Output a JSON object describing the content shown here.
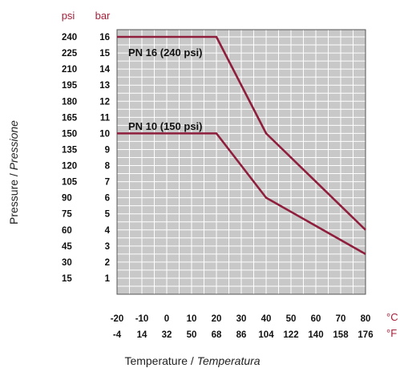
{
  "chart_data": {
    "type": "line",
    "ylabel_main": "Pressure / ",
    "ylabel_italic": "Pressione",
    "xlabel_main": "Temperature / ",
    "xlabel_italic": "Temperatura",
    "y_units": {
      "psi": "psi",
      "bar": "bar"
    },
    "x_units": {
      "c": "°C",
      "f": "°F"
    },
    "xlim": [
      -20,
      80
    ],
    "ylim_bar": [
      0,
      16
    ],
    "grid": true,
    "x_ticks_c": [
      "-20",
      "-10",
      "0",
      "10",
      "20",
      "30",
      "40",
      "50",
      "60",
      "70",
      "80"
    ],
    "x_ticks_f": [
      "-4",
      "14",
      "32",
      "50",
      "68",
      "86",
      "104",
      "122",
      "140",
      "158",
      "176"
    ],
    "y_ticks_bar": [
      "1",
      "2",
      "3",
      "4",
      "5",
      "6",
      "7",
      "8",
      "9",
      "10",
      "11",
      "12",
      "13",
      "14",
      "15",
      "16"
    ],
    "y_ticks_psi": [
      "15",
      "30",
      "45",
      "60",
      "75",
      "90",
      "105",
      "120",
      "135",
      "150",
      "165",
      "180",
      "195",
      "210",
      "225",
      "240"
    ],
    "series": [
      {
        "name": "PN 16 (240 psi)",
        "color": "#8e1e3c",
        "x": [
          -20,
          20,
          40,
          80
        ],
        "y": [
          16,
          16,
          10,
          4
        ]
      },
      {
        "name": "PN 10 (150 psi)",
        "color": "#8e1e3c",
        "x": [
          -20,
          20,
          40,
          80
        ],
        "y": [
          10,
          10,
          6,
          2.5
        ]
      }
    ],
    "colors": {
      "plot_bg": "#c8c8c8",
      "grid": "#ffffff",
      "axis": "#555555",
      "unit_text": "#a3203a"
    }
  }
}
